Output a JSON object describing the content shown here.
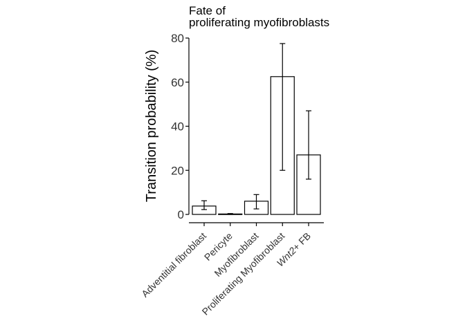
{
  "chart_data": {
    "type": "bar",
    "title_lines": [
      "Fate of",
      "proliferating myofibroblasts"
    ],
    "ylabel": "Transition probability (%)",
    "xlabel": "",
    "ylim": [
      0,
      80
    ],
    "yticks": [
      0,
      20,
      40,
      60,
      80
    ],
    "grid": false,
    "legend": "none",
    "categories": [
      {
        "text": "Adventitial fibroblast",
        "italic_prefix": ""
      },
      {
        "text": "Pericyte",
        "italic_prefix": ""
      },
      {
        "text": "Myofibroblast",
        "italic_prefix": ""
      },
      {
        "text": "Proliferating Myofibroblast",
        "italic_prefix": ""
      },
      {
        "text": "+ FB",
        "italic_prefix": "Wnt2"
      }
    ],
    "values": [
      3.8,
      0.2,
      6.0,
      62.5,
      27.0
    ],
    "error_low": [
      2.2,
      0.0,
      2.5,
      20.0,
      16.0
    ],
    "error_high": [
      6.2,
      0.4,
      9.0,
      77.5,
      47.0
    ]
  }
}
